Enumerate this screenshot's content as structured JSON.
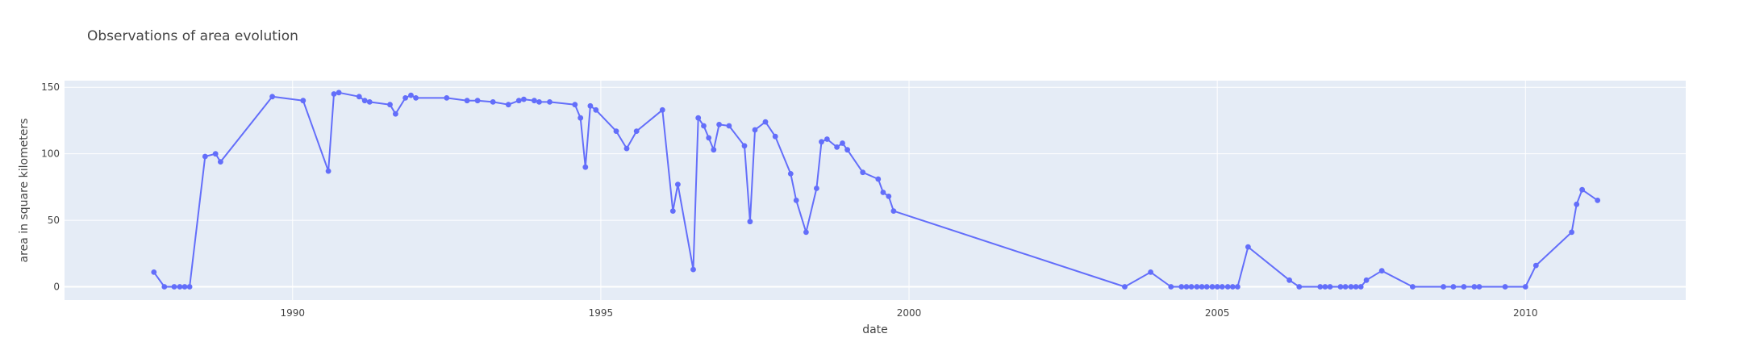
{
  "chart_data": {
    "type": "line",
    "title": "Observations of area evolution",
    "xlabel": "date",
    "ylabel": "area in square kilometers",
    "x_ticks": [
      1990,
      1995,
      2000,
      2005,
      2010
    ],
    "y_ticks": [
      0,
      50,
      100,
      150
    ],
    "xlim": [
      1986.3,
      2012.6
    ],
    "ylim": [
      -10,
      155
    ],
    "grid": true,
    "legend": "none",
    "series": [
      {
        "color": "#636efa",
        "mode": "lines+markers",
        "points": [
          [
            1987.75,
            11
          ],
          [
            1987.92,
            0
          ],
          [
            1988.08,
            0
          ],
          [
            1988.17,
            0
          ],
          [
            1988.25,
            0
          ],
          [
            1988.33,
            0
          ],
          [
            1988.58,
            98
          ],
          [
            1988.75,
            100
          ],
          [
            1988.83,
            94
          ],
          [
            1989.67,
            143
          ],
          [
            1990.17,
            140
          ],
          [
            1990.58,
            87
          ],
          [
            1990.67,
            145
          ],
          [
            1990.75,
            146
          ],
          [
            1991.08,
            143
          ],
          [
            1991.17,
            140
          ],
          [
            1991.25,
            139
          ],
          [
            1991.58,
            137
          ],
          [
            1991.67,
            130
          ],
          [
            1991.83,
            142
          ],
          [
            1991.92,
            144
          ],
          [
            1992.0,
            142
          ],
          [
            1992.5,
            142
          ],
          [
            1992.83,
            140
          ],
          [
            1993.0,
            140
          ],
          [
            1993.25,
            139
          ],
          [
            1993.5,
            137
          ],
          [
            1993.67,
            140
          ],
          [
            1993.75,
            141
          ],
          [
            1993.92,
            140
          ],
          [
            1994.0,
            139
          ],
          [
            1994.17,
            139
          ],
          [
            1994.58,
            137
          ],
          [
            1994.67,
            127
          ],
          [
            1994.75,
            90
          ],
          [
            1994.83,
            136
          ],
          [
            1994.92,
            133
          ],
          [
            1995.25,
            117
          ],
          [
            1995.42,
            104
          ],
          [
            1995.58,
            117
          ],
          [
            1996.0,
            133
          ],
          [
            1996.17,
            57
          ],
          [
            1996.25,
            77
          ],
          [
            1996.5,
            13
          ],
          [
            1996.58,
            127
          ],
          [
            1996.67,
            121
          ],
          [
            1996.75,
            112
          ],
          [
            1996.83,
            103
          ],
          [
            1996.92,
            122
          ],
          [
            1997.08,
            121
          ],
          [
            1997.33,
            106
          ],
          [
            1997.42,
            49
          ],
          [
            1997.5,
            118
          ],
          [
            1997.67,
            124
          ],
          [
            1997.83,
            113
          ],
          [
            1998.08,
            85
          ],
          [
            1998.17,
            65
          ],
          [
            1998.33,
            41
          ],
          [
            1998.5,
            74
          ],
          [
            1998.58,
            109
          ],
          [
            1998.67,
            111
          ],
          [
            1998.83,
            105
          ],
          [
            1998.92,
            108
          ],
          [
            1999.0,
            103
          ],
          [
            1999.25,
            86
          ],
          [
            1999.5,
            81
          ],
          [
            1999.58,
            71
          ],
          [
            1999.67,
            68
          ],
          [
            1999.75,
            57
          ],
          [
            2003.5,
            0
          ],
          [
            2003.92,
            11
          ],
          [
            2004.25,
            0
          ],
          [
            2004.42,
            0
          ],
          [
            2004.5,
            0
          ],
          [
            2004.58,
            0
          ],
          [
            2004.67,
            0
          ],
          [
            2004.75,
            0
          ],
          [
            2004.83,
            0
          ],
          [
            2004.92,
            0
          ],
          [
            2005.0,
            0
          ],
          [
            2005.08,
            0
          ],
          [
            2005.17,
            0
          ],
          [
            2005.25,
            0
          ],
          [
            2005.33,
            0
          ],
          [
            2005.5,
            30
          ],
          [
            2006.17,
            5
          ],
          [
            2006.33,
            0
          ],
          [
            2006.67,
            0
          ],
          [
            2006.75,
            0
          ],
          [
            2006.83,
            0
          ],
          [
            2007.0,
            0
          ],
          [
            2007.08,
            0
          ],
          [
            2007.17,
            0
          ],
          [
            2007.25,
            0
          ],
          [
            2007.33,
            0
          ],
          [
            2007.42,
            5
          ],
          [
            2007.67,
            12
          ],
          [
            2008.17,
            0
          ],
          [
            2008.67,
            0
          ],
          [
            2008.83,
            0
          ],
          [
            2009.0,
            0
          ],
          [
            2009.17,
            0
          ],
          [
            2009.25,
            0
          ],
          [
            2009.67,
            0
          ],
          [
            2010.0,
            0
          ],
          [
            2010.17,
            16
          ],
          [
            2010.75,
            41
          ],
          [
            2010.83,
            62
          ],
          [
            2010.92,
            73
          ],
          [
            2011.17,
            65
          ]
        ]
      }
    ]
  }
}
